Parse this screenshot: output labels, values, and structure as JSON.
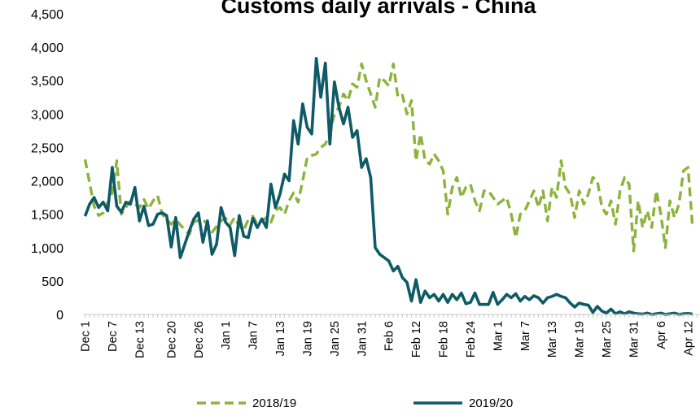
{
  "chart_data": {
    "type": "line",
    "title": "Customs daily arrivals - China",
    "ylim": [
      0,
      4500
    ],
    "y_ticks": [
      "0",
      "500",
      "1,000",
      "1,500",
      "2,000",
      "2,500",
      "3,000",
      "3,500",
      "4,000",
      "4,500"
    ],
    "y_tick_values": [
      0,
      500,
      1000,
      1500,
      2000,
      2500,
      3000,
      3500,
      4000,
      4500
    ],
    "x_tick_labels": [
      "Dec 1",
      "Dec 7",
      "Dec 13",
      "Dec 20",
      "Dec 26",
      "Jan 1",
      "Jan 7",
      "Jan 13",
      "Jan 19",
      "Jan 25",
      "Jan 31",
      "Feb 6",
      "Feb 12",
      "Feb 18",
      "Feb 24",
      "Mar 1",
      "Mar 7",
      "Mar 13",
      "Mar 19",
      "Mar 25",
      "Mar 31",
      "Apr 6",
      "Apr 12"
    ],
    "x_tick_days": [
      0,
      6,
      12,
      19,
      25,
      31,
      37,
      43,
      49,
      55,
      61,
      67,
      73,
      79,
      85,
      91,
      97,
      103,
      109,
      115,
      121,
      127,
      133
    ],
    "grid": false,
    "legend_position": "bottom",
    "series": [
      {
        "name": "2018/19",
        "color": "#8DB33C",
        "style": "dashed",
        "points": [
          [
            0,
            2320
          ],
          [
            2,
            1620
          ],
          [
            3,
            1480
          ],
          [
            4,
            1520
          ],
          [
            6,
            1820
          ],
          [
            7,
            2300
          ],
          [
            8,
            1500
          ],
          [
            10,
            1700
          ],
          [
            12,
            1600
          ],
          [
            13,
            1720
          ],
          [
            14,
            1580
          ],
          [
            15,
            1700
          ],
          [
            16,
            1780
          ],
          [
            17,
            1500
          ],
          [
            19,
            1350
          ],
          [
            20,
            1420
          ],
          [
            21,
            1340
          ],
          [
            23,
            1200
          ],
          [
            24,
            1390
          ],
          [
            26,
            1420
          ],
          [
            27,
            1350
          ],
          [
            28,
            1230
          ],
          [
            30,
            1400
          ],
          [
            31,
            1440
          ],
          [
            32,
            1340
          ],
          [
            33,
            1450
          ],
          [
            34,
            1320
          ],
          [
            35,
            1260
          ],
          [
            36,
            1420
          ],
          [
            37,
            1470
          ],
          [
            38,
            1350
          ],
          [
            40,
            1450
          ],
          [
            41,
            1380
          ],
          [
            42,
            1560
          ],
          [
            43,
            1600
          ],
          [
            44,
            1500
          ],
          [
            45,
            1700
          ],
          [
            46,
            1820
          ],
          [
            47,
            1680
          ],
          [
            48,
            2000
          ],
          [
            49,
            2350
          ],
          [
            50,
            2380
          ],
          [
            51,
            2400
          ],
          [
            52,
            2500
          ],
          [
            53,
            2550
          ],
          [
            54,
            2700
          ],
          [
            55,
            3000
          ],
          [
            56,
            3100
          ],
          [
            57,
            3300
          ],
          [
            58,
            3200
          ],
          [
            59,
            3450
          ],
          [
            60,
            3400
          ],
          [
            61,
            3750
          ],
          [
            62,
            3500
          ],
          [
            63,
            3300
          ],
          [
            64,
            3100
          ],
          [
            65,
            3550
          ],
          [
            66,
            3500
          ],
          [
            67,
            3420
          ],
          [
            68,
            3750
          ],
          [
            69,
            3250
          ],
          [
            70,
            3280
          ],
          [
            71,
            3000
          ],
          [
            72,
            3200
          ],
          [
            73,
            2300
          ],
          [
            74,
            2700
          ],
          [
            75,
            2300
          ],
          [
            76,
            2250
          ],
          [
            77,
            2400
          ],
          [
            78,
            2300
          ],
          [
            79,
            2150
          ],
          [
            80,
            1500
          ],
          [
            81,
            1900
          ],
          [
            82,
            2050
          ],
          [
            83,
            1750
          ],
          [
            84,
            1900
          ],
          [
            85,
            1950
          ],
          [
            86,
            1700
          ],
          [
            87,
            1550
          ],
          [
            88,
            1850
          ],
          [
            89,
            1850
          ],
          [
            91,
            1650
          ],
          [
            92,
            1700
          ],
          [
            93,
            1750
          ],
          [
            94,
            1500
          ],
          [
            95,
            1150
          ],
          [
            96,
            1500
          ],
          [
            97,
            1550
          ],
          [
            98,
            1700
          ],
          [
            99,
            1850
          ],
          [
            100,
            1600
          ],
          [
            101,
            1850
          ],
          [
            102,
            1400
          ],
          [
            103,
            1900
          ],
          [
            104,
            1750
          ],
          [
            105,
            2300
          ],
          [
            106,
            1900
          ],
          [
            107,
            1800
          ],
          [
            108,
            1450
          ],
          [
            109,
            1850
          ],
          [
            110,
            1650
          ],
          [
            111,
            1800
          ],
          [
            112,
            2050
          ],
          [
            113,
            2000
          ],
          [
            114,
            1600
          ],
          [
            115,
            1500
          ],
          [
            116,
            1700
          ],
          [
            117,
            1350
          ],
          [
            118,
            1850
          ],
          [
            119,
            2050
          ],
          [
            120,
            1950
          ],
          [
            121,
            950
          ],
          [
            122,
            1700
          ],
          [
            123,
            1300
          ],
          [
            124,
            1550
          ],
          [
            125,
            1300
          ],
          [
            126,
            1850
          ],
          [
            127,
            1500
          ],
          [
            128,
            1000
          ],
          [
            129,
            1700
          ],
          [
            130,
            1450
          ],
          [
            131,
            1650
          ],
          [
            132,
            2150
          ],
          [
            133,
            2200
          ],
          [
            134,
            1300
          ]
        ]
      },
      {
        "name": "2019/20",
        "color": "#0E5A66",
        "style": "solid",
        "points": [
          [
            0,
            1470
          ],
          [
            1,
            1650
          ],
          [
            2,
            1750
          ],
          [
            3,
            1600
          ],
          [
            4,
            1680
          ],
          [
            5,
            1550
          ],
          [
            6,
            2200
          ],
          [
            7,
            1620
          ],
          [
            8,
            1530
          ],
          [
            9,
            1680
          ],
          [
            10,
            1650
          ],
          [
            11,
            1900
          ],
          [
            12,
            1400
          ],
          [
            13,
            1620
          ],
          [
            14,
            1330
          ],
          [
            15,
            1350
          ],
          [
            16,
            1500
          ],
          [
            17,
            1520
          ],
          [
            18,
            1480
          ],
          [
            19,
            1010
          ],
          [
            20,
            1450
          ],
          [
            21,
            850
          ],
          [
            22,
            1050
          ],
          [
            23,
            1250
          ],
          [
            24,
            1430
          ],
          [
            25,
            1520
          ],
          [
            26,
            1080
          ],
          [
            27,
            1400
          ],
          [
            28,
            900
          ],
          [
            29,
            1050
          ],
          [
            30,
            1600
          ],
          [
            31,
            1380
          ],
          [
            32,
            1300
          ],
          [
            33,
            880
          ],
          [
            34,
            1480
          ],
          [
            35,
            1170
          ],
          [
            36,
            1150
          ],
          [
            37,
            1440
          ],
          [
            38,
            1300
          ],
          [
            39,
            1430
          ],
          [
            40,
            1300
          ],
          [
            41,
            1950
          ],
          [
            42,
            1600
          ],
          [
            43,
            1800
          ],
          [
            44,
            2100
          ],
          [
            45,
            2000
          ],
          [
            46,
            2900
          ],
          [
            47,
            2550
          ],
          [
            48,
            3150
          ],
          [
            49,
            2800
          ],
          [
            50,
            2700
          ],
          [
            51,
            3830
          ],
          [
            52,
            3250
          ],
          [
            53,
            3760
          ],
          [
            54,
            2550
          ],
          [
            55,
            3480
          ],
          [
            56,
            3100
          ],
          [
            57,
            2850
          ],
          [
            58,
            3100
          ],
          [
            59,
            2650
          ],
          [
            60,
            2750
          ],
          [
            61,
            2200
          ],
          [
            62,
            2330
          ],
          [
            63,
            2050
          ],
          [
            64,
            1000
          ],
          [
            65,
            900
          ],
          [
            66,
            850
          ],
          [
            67,
            800
          ],
          [
            68,
            650
          ],
          [
            69,
            720
          ],
          [
            70,
            550
          ],
          [
            71,
            480
          ],
          [
            72,
            200
          ],
          [
            73,
            520
          ],
          [
            74,
            180
          ],
          [
            75,
            350
          ],
          [
            76,
            250
          ],
          [
            77,
            300
          ],
          [
            78,
            200
          ],
          [
            79,
            300
          ],
          [
            80,
            180
          ],
          [
            81,
            300
          ],
          [
            82,
            220
          ],
          [
            83,
            320
          ],
          [
            84,
            160
          ],
          [
            85,
            180
          ],
          [
            86,
            320
          ],
          [
            87,
            150
          ],
          [
            88,
            150
          ],
          [
            89,
            150
          ],
          [
            90,
            330
          ],
          [
            91,
            150
          ],
          [
            92,
            220
          ],
          [
            93,
            300
          ],
          [
            94,
            250
          ],
          [
            95,
            310
          ],
          [
            96,
            200
          ],
          [
            97,
            270
          ],
          [
            98,
            220
          ],
          [
            99,
            280
          ],
          [
            100,
            250
          ],
          [
            101,
            170
          ],
          [
            102,
            250
          ],
          [
            103,
            270
          ],
          [
            104,
            300
          ],
          [
            105,
            270
          ],
          [
            106,
            250
          ],
          [
            107,
            170
          ],
          [
            108,
            110
          ],
          [
            109,
            170
          ],
          [
            110,
            150
          ],
          [
            111,
            140
          ],
          [
            112,
            30
          ],
          [
            113,
            120
          ],
          [
            114,
            50
          ],
          [
            115,
            20
          ],
          [
            116,
            80
          ],
          [
            117,
            10
          ],
          [
            118,
            40
          ],
          [
            119,
            10
          ],
          [
            120,
            40
          ],
          [
            121,
            20
          ],
          [
            122,
            10
          ],
          [
            123,
            5
          ],
          [
            124,
            20
          ],
          [
            125,
            0
          ],
          [
            126,
            10
          ],
          [
            127,
            20
          ],
          [
            128,
            0
          ],
          [
            129,
            10
          ],
          [
            130,
            20
          ],
          [
            131,
            0
          ],
          [
            132,
            10
          ],
          [
            133,
            15
          ],
          [
            134,
            5
          ]
        ]
      }
    ]
  }
}
